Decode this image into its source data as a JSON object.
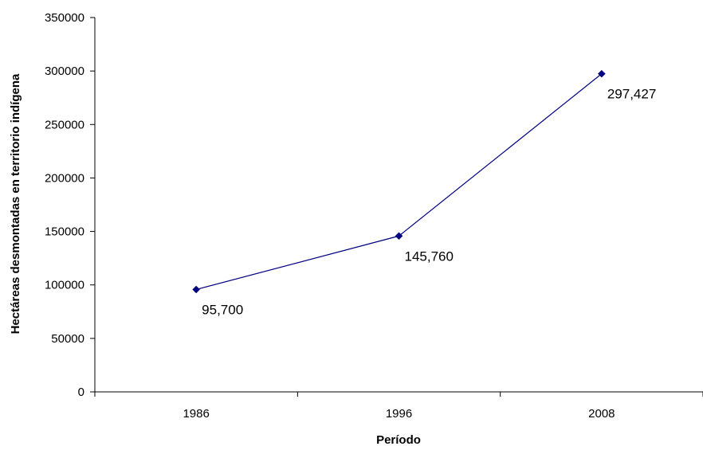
{
  "chart_data": {
    "type": "line",
    "title": "",
    "xlabel": "Período",
    "ylabel": "Hectáreas desmontadas en territorio indígena",
    "categories": [
      "1986",
      "1996",
      "2008"
    ],
    "series": [
      {
        "values": [
          95700,
          145760,
          297427
        ],
        "data_labels": [
          "95,700",
          "145,760",
          "297,427"
        ],
        "color": "#000080",
        "marker": "diamond"
      }
    ],
    "ylim": [
      0,
      350000
    ],
    "yticks": [
      "0",
      "50000",
      "100000",
      "150000",
      "200000",
      "250000",
      "300000",
      "350000"
    ],
    "grid": false,
    "legend": "none"
  }
}
